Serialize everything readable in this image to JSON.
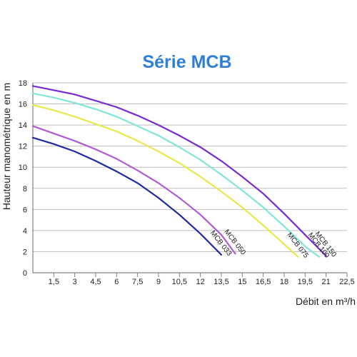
{
  "chart_data": {
    "type": "line",
    "title": "Série MCB",
    "xlabel": "Débit en m³/h",
    "ylabel": "Hauteur manométrique en m",
    "x_ticks": [
      "1,5",
      "3",
      "4,5",
      "6",
      "7,5",
      "9",
      "10,5",
      "12",
      "13,5",
      "15",
      "16,5",
      "18",
      "19,5",
      "21",
      "22,5"
    ],
    "y_ticks": [
      "0",
      "2",
      "4",
      "6",
      "8",
      "10",
      "12",
      "14",
      "16",
      "18"
    ],
    "xlim": [
      0,
      22.5
    ],
    "ylim": [
      0,
      18
    ],
    "grid": "horizontal",
    "colors": {
      "title": "#2f7fd6",
      "grid": "#bfbfbf",
      "axis": "#808080",
      "text": "#222222"
    },
    "series": [
      {
        "name": "MCB 033",
        "color": "#1f2aa0",
        "x": [
          0,
          1.5,
          3,
          4.5,
          6,
          7.5,
          9,
          10.5,
          12,
          13.5
        ],
        "y": [
          12.8,
          12.2,
          11.5,
          10.6,
          9.6,
          8.5,
          7.1,
          5.5,
          3.7,
          1.7
        ]
      },
      {
        "name": "MCB 050",
        "color": "#b05ad6",
        "x": [
          0,
          1.5,
          3,
          4.5,
          6,
          7.5,
          9,
          10.5,
          12,
          13.5,
          14.5
        ],
        "y": [
          13.9,
          13.2,
          12.5,
          11.7,
          10.8,
          9.7,
          8.5,
          7.1,
          5.5,
          3.6,
          1.8
        ]
      },
      {
        "name": "MCB 075",
        "color": "#e8e84a",
        "x": [
          0,
          1.5,
          3,
          4.5,
          6,
          7.5,
          9,
          10.5,
          12,
          13.5,
          15,
          16.5,
          18,
          19
        ],
        "y": [
          15.9,
          15.4,
          14.8,
          14.1,
          13.4,
          12.5,
          11.5,
          10.4,
          9.1,
          7.7,
          6.2,
          4.5,
          2.7,
          1.5
        ]
      },
      {
        "name": "MCB 100",
        "color": "#7fe6d8",
        "x": [
          0,
          1.5,
          3,
          4.5,
          6,
          7.5,
          9,
          10.5,
          12,
          13.5,
          15,
          16.5,
          18,
          19.5,
          20.5
        ],
        "y": [
          17,
          16.6,
          16.1,
          15.5,
          14.8,
          13.9,
          13,
          11.9,
          10.7,
          9.3,
          7.8,
          6.2,
          4.4,
          2.5,
          1.5
        ]
      },
      {
        "name": "MCB 150",
        "color": "#7a2bd0",
        "x": [
          0,
          1.5,
          3,
          4.5,
          6,
          7.5,
          9,
          10.5,
          12,
          13.5,
          15,
          16.5,
          18,
          19.5,
          21
        ],
        "y": [
          17.7,
          17.3,
          16.9,
          16.3,
          15.7,
          14.9,
          14,
          13,
          11.9,
          10.6,
          9.1,
          7.5,
          5.6,
          3.6,
          1.6
        ]
      }
    ]
  }
}
